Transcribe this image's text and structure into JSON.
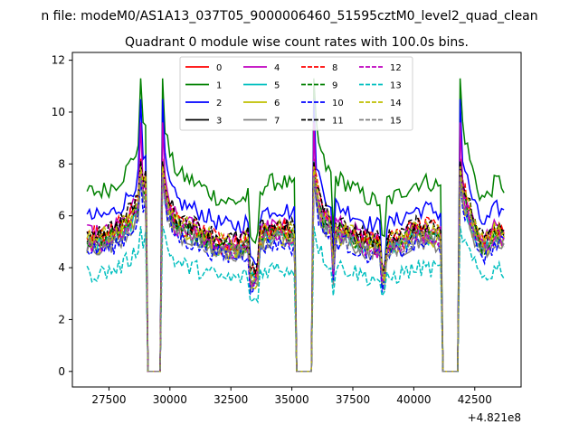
{
  "chart_data": {
    "type": "line",
    "suptitle": "n file: modeM0/AS1A13_037T05_9000006460_51595cztM0_level2_quad_clean",
    "title": "Quadrant 0 module wise count rates with 100.0s bins.",
    "xlabel": "",
    "ylabel": "",
    "offset_label": "+4.821e8",
    "xlim": [
      26000,
      44400
    ],
    "ylim": [
      -0.6,
      12.3
    ],
    "xticks": [
      27500,
      30000,
      32500,
      35000,
      37500,
      40000,
      42500
    ],
    "xtick_labels": [
      "27500",
      "30000",
      "32500",
      "35000",
      "37500",
      "40000",
      "42500"
    ],
    "yticks": [
      0,
      2,
      4,
      6,
      8,
      10,
      12
    ],
    "ytick_labels": [
      "0",
      "2",
      "4",
      "6",
      "8",
      "10",
      "12"
    ],
    "grid": false,
    "legend_position": "top-center",
    "legend_columns": 4,
    "x_range": [
      26600,
      43700
    ],
    "bin_seconds": 100,
    "gaps": [
      [
        29000,
        29700
      ],
      [
        35100,
        35900
      ],
      [
        41100,
        41900
      ]
    ],
    "series": [
      {
        "name": "0",
        "color": "#ff0000",
        "dash": "solid",
        "level": 5.6,
        "peak": 8.2
      },
      {
        "name": "1",
        "color": "#008000",
        "dash": "solid",
        "level": 7.7,
        "peak": 11.3
      },
      {
        "name": "2",
        "color": "#0000ff",
        "dash": "solid",
        "level": 6.6,
        "peak": 10.5
      },
      {
        "name": "3",
        "color": "#000000",
        "dash": "solid",
        "level": 5.7,
        "peak": 8.0
      },
      {
        "name": "4",
        "color": "#bf00bf",
        "dash": "solid",
        "level": 5.9,
        "peak": 9.6
      },
      {
        "name": "5",
        "color": "#00bfbf",
        "dash": "solid",
        "level": 5.5,
        "peak": 8.1
      },
      {
        "name": "6",
        "color": "#bfbf00",
        "dash": "solid",
        "level": 5.4,
        "peak": 7.8
      },
      {
        "name": "7",
        "color": "#808080",
        "dash": "solid",
        "level": 5.3,
        "peak": 7.6
      },
      {
        "name": "8",
        "color": "#ff0000",
        "dash": "dashed",
        "level": 5.9,
        "peak": 8.0
      },
      {
        "name": "9",
        "color": "#008000",
        "dash": "dashed",
        "level": 5.6,
        "peak": 7.9
      },
      {
        "name": "10",
        "color": "#0000ff",
        "dash": "dashed",
        "level": 5.2,
        "peak": 7.4
      },
      {
        "name": "11",
        "color": "#000000",
        "dash": "dashed",
        "level": 6.0,
        "peak": 8.1
      },
      {
        "name": "12",
        "color": "#bf00bf",
        "dash": "dashed",
        "level": 5.5,
        "peak": 7.8
      },
      {
        "name": "13",
        "color": "#00bfbf",
        "dash": "dashed",
        "level": 4.2,
        "peak": 5.6
      },
      {
        "name": "14",
        "color": "#bfbf00",
        "dash": "dashed",
        "level": 5.8,
        "peak": 7.9
      },
      {
        "name": "15",
        "color": "#808080",
        "dash": "dashed",
        "level": 5.4,
        "peak": 7.5
      }
    ]
  }
}
